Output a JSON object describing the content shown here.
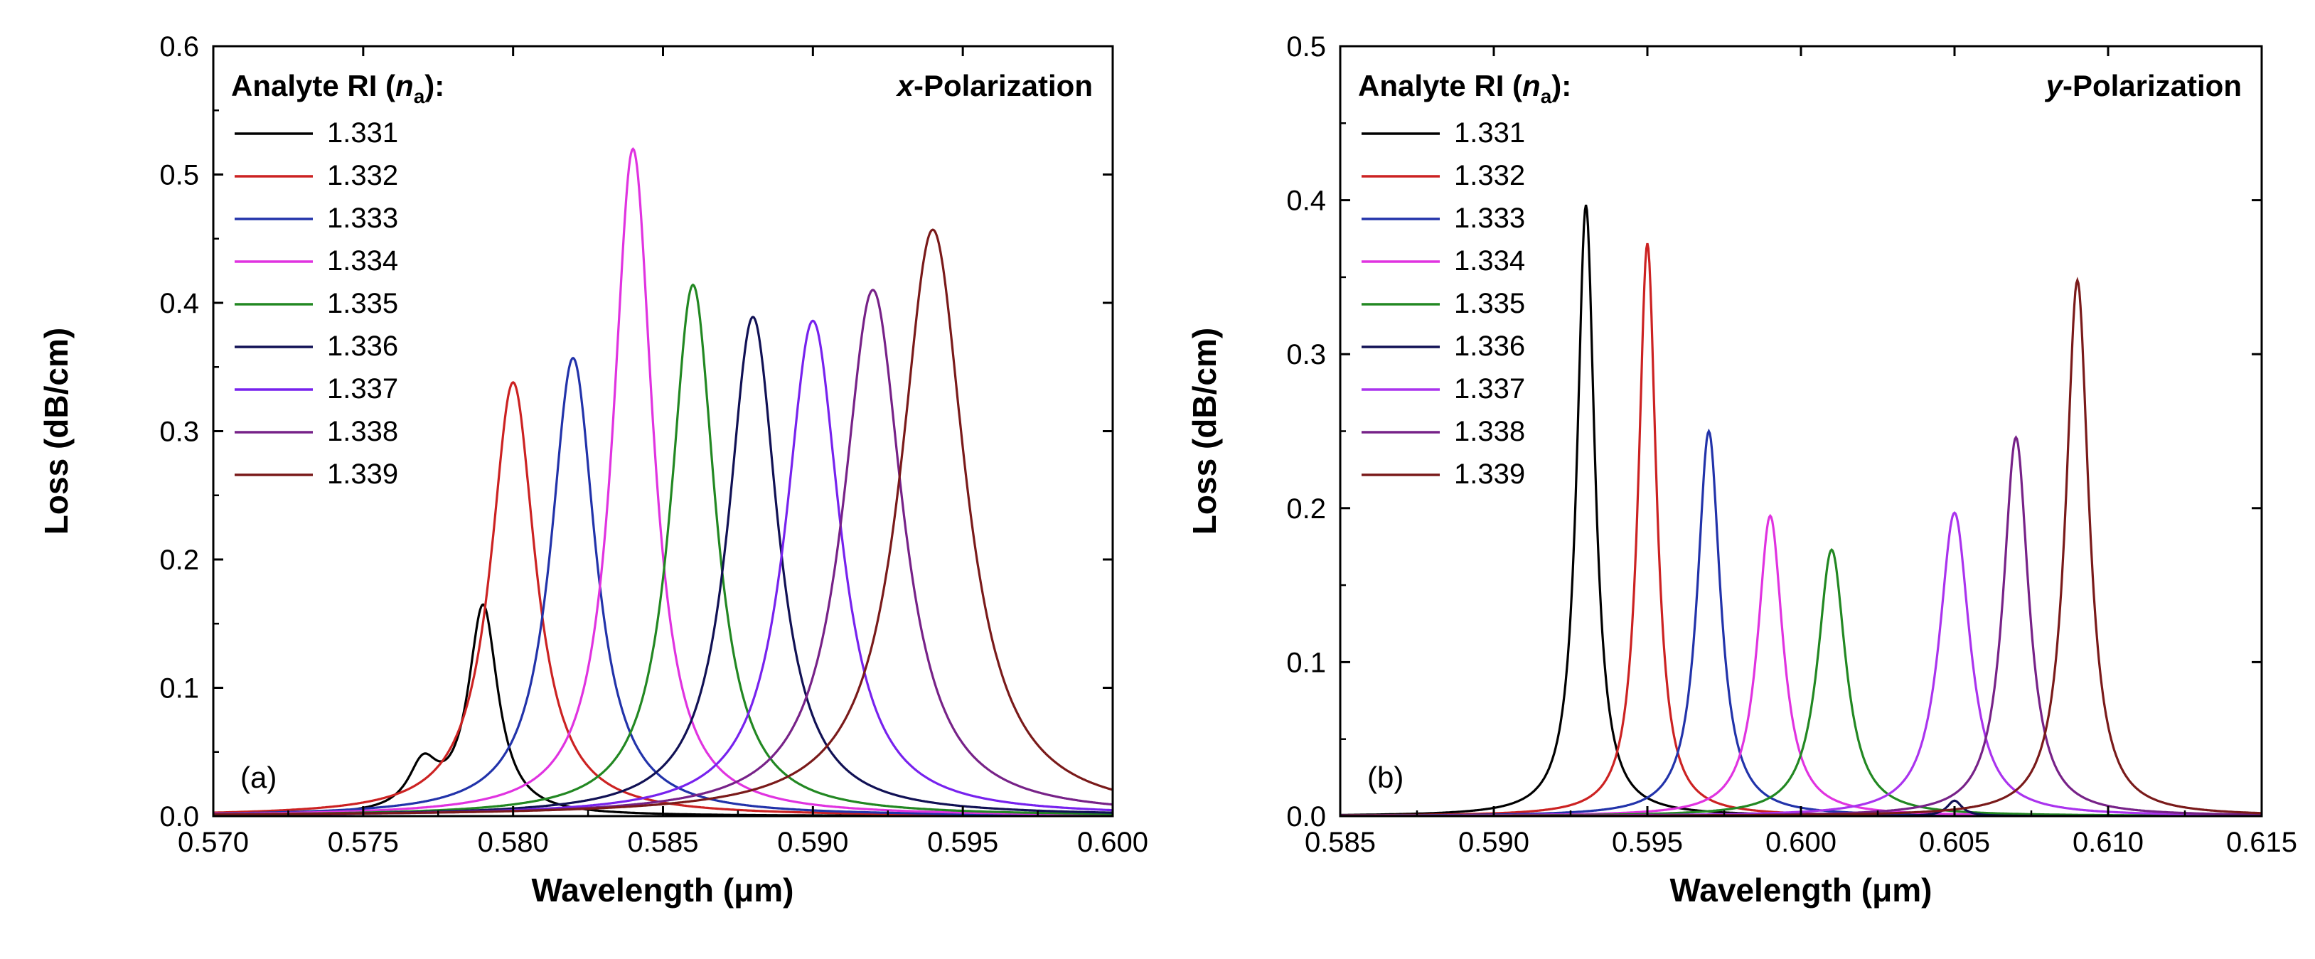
{
  "chart_data": [
    {
      "type": "line",
      "panel_label": "(a)",
      "annotation": "-Polarization",
      "annotation_italic": "x",
      "legend_title_prefix": "Analyte RI (",
      "legend_title_symbol": "n",
      "legend_title_sub": "a",
      "legend_title_suffix": "):",
      "legend_position": "top-left",
      "xlabel": "Wavelength (μm)",
      "ylabel": "Loss (dB/cm)",
      "xlim": [
        0.57,
        0.6
      ],
      "ylim": [
        0.0,
        0.6
      ],
      "xticks": [
        "0.570",
        "0.575",
        "0.580",
        "0.585",
        "0.590",
        "0.595",
        "0.600"
      ],
      "yticks": [
        "0.0",
        "0.1",
        "0.2",
        "0.3",
        "0.4",
        "0.5",
        "0.6"
      ],
      "series": [
        {
          "name": "1.331",
          "color": "#000000",
          "peaks": [
            {
              "x": 0.577,
              "y": 0.035,
              "w": 0.0006
            },
            {
              "x": 0.579,
              "y": 0.162,
              "w": 0.0006
            }
          ]
        },
        {
          "name": "1.332",
          "color": "#cc2222",
          "peaks": [
            {
              "x": 0.58,
              "y": 0.338,
              "w": 0.0009
            }
          ]
        },
        {
          "name": "1.333",
          "color": "#2233aa",
          "peaks": [
            {
              "x": 0.582,
              "y": 0.357,
              "w": 0.0009
            }
          ]
        },
        {
          "name": "1.334",
          "color": "#e033e0",
          "peaks": [
            {
              "x": 0.584,
              "y": 0.52,
              "w": 0.0008
            }
          ]
        },
        {
          "name": "1.335",
          "color": "#228822",
          "peaks": [
            {
              "x": 0.586,
              "y": 0.414,
              "w": 0.0009
            }
          ]
        },
        {
          "name": "1.336",
          "color": "#111155",
          "peaks": [
            {
              "x": 0.588,
              "y": 0.389,
              "w": 0.001
            }
          ]
        },
        {
          "name": "1.337",
          "color": "#7722ee",
          "peaks": [
            {
              "x": 0.59,
              "y": 0.386,
              "w": 0.0011
            }
          ]
        },
        {
          "name": "1.338",
          "color": "#772288",
          "peaks": [
            {
              "x": 0.592,
              "y": 0.41,
              "w": 0.0012
            }
          ]
        },
        {
          "name": "1.339",
          "color": "#7a1a1a",
          "peaks": [
            {
              "x": 0.594,
              "y": 0.457,
              "w": 0.0013
            }
          ]
        }
      ]
    },
    {
      "type": "line",
      "panel_label": "(b)",
      "annotation": "-Polarization",
      "annotation_italic": "y",
      "legend_title_prefix": "Analyte RI (",
      "legend_title_symbol": "n",
      "legend_title_sub": "a",
      "legend_title_suffix": "):",
      "legend_position": "top-left",
      "xlabel": "Wavelength (μm)",
      "ylabel": "Loss (dB/cm)",
      "xlim": [
        0.585,
        0.615
      ],
      "ylim": [
        0.0,
        0.5
      ],
      "xticks": [
        "0.585",
        "0.590",
        "0.595",
        "0.600",
        "0.605",
        "0.610",
        "0.615"
      ],
      "yticks": [
        "0.0",
        "0.1",
        "0.2",
        "0.3",
        "0.4",
        "0.5"
      ],
      "series": [
        {
          "name": "1.331",
          "color": "#000000",
          "peaks": [
            {
              "x": 0.593,
              "y": 0.397,
              "w": 0.00035
            }
          ]
        },
        {
          "name": "1.332",
          "color": "#cc2222",
          "peaks": [
            {
              "x": 0.595,
              "y": 0.372,
              "w": 0.00035
            }
          ]
        },
        {
          "name": "1.333",
          "color": "#2233aa",
          "peaks": [
            {
              "x": 0.597,
              "y": 0.25,
              "w": 0.00045
            }
          ]
        },
        {
          "name": "1.334",
          "color": "#e033e0",
          "peaks": [
            {
              "x": 0.599,
              "y": 0.195,
              "w": 0.0005
            }
          ]
        },
        {
          "name": "1.335",
          "color": "#228822",
          "peaks": [
            {
              "x": 0.601,
              "y": 0.173,
              "w": 0.00055
            }
          ]
        },
        {
          "name": "1.336",
          "color": "#111155",
          "peaks": [
            {
              "x": 0.605,
              "y": 0.01,
              "w": 0.0003
            }
          ]
        },
        {
          "name": "1.337",
          "color": "#aa33ee",
          "peaks": [
            {
              "x": 0.605,
              "y": 0.197,
              "w": 0.0006
            }
          ]
        },
        {
          "name": "1.338",
          "color": "#772288",
          "peaks": [
            {
              "x": 0.607,
              "y": 0.246,
              "w": 0.0005
            }
          ]
        },
        {
          "name": "1.339",
          "color": "#7a1a1a",
          "peaks": [
            {
              "x": 0.609,
              "y": 0.348,
              "w": 0.00045
            }
          ]
        }
      ]
    }
  ]
}
